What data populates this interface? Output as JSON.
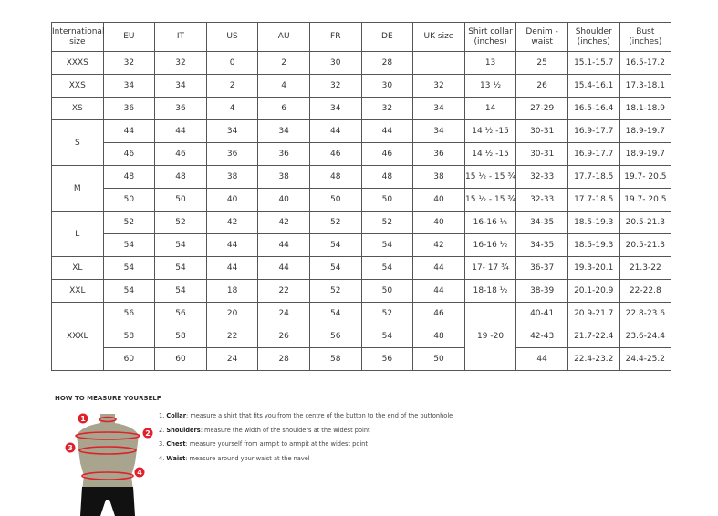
{
  "headers": [
    "International size",
    "EU",
    "IT",
    "US",
    "AU",
    "FR",
    "DE",
    "UK size",
    "Shirt collar (inches)",
    "Denim - waist",
    "Shoulder (inches)",
    "Bust (inches)"
  ],
  "groups": [
    {
      "size": "XXXS",
      "rows": [
        [
          "32",
          "32",
          "0",
          "2",
          "30",
          "28",
          "",
          "13",
          "25",
          "15.1-15.7",
          "16.5-17.2"
        ]
      ]
    },
    {
      "size": "XXS",
      "rows": [
        [
          "34",
          "34",
          "2",
          "4",
          "32",
          "30",
          "32",
          "13 ½",
          "26",
          "15.4-16.1",
          "17.3-18.1"
        ]
      ]
    },
    {
      "size": "XS",
      "rows": [
        [
          "36",
          "36",
          "4",
          "6",
          "34",
          "32",
          "34",
          "14",
          "27-29",
          "16.5-16.4",
          "18.1-18.9"
        ]
      ]
    },
    {
      "size": "S",
      "rows": [
        [
          "44",
          "44",
          "34",
          "34",
          "44",
          "44",
          "34",
          "14 ½ -15",
          "30-31",
          "16.9-17.7",
          "18.9-19.7"
        ],
        [
          "46",
          "46",
          "36",
          "36",
          "46",
          "46",
          "36",
          "14 ½ -15",
          "30-31",
          "16.9-17.7",
          "18.9-19.7"
        ]
      ]
    },
    {
      "size": "M",
      "rows": [
        [
          "48",
          "48",
          "38",
          "38",
          "48",
          "48",
          "38",
          "15 ½ - 15 ¾",
          "32-33",
          "17.7-18.5",
          "19.7- 20.5"
        ],
        [
          "50",
          "50",
          "40",
          "40",
          "50",
          "50",
          "40",
          "15 ½ - 15 ¾",
          "32-33",
          "17.7-18.5",
          "19.7- 20.5"
        ]
      ]
    },
    {
      "size": "L",
      "rows": [
        [
          "52",
          "52",
          "42",
          "42",
          "52",
          "52",
          "40",
          "16-16 ½",
          "34-35",
          "18.5-19.3",
          "20.5-21.3"
        ],
        [
          "54",
          "54",
          "44",
          "44",
          "54",
          "54",
          "42",
          "16-16 ½",
          "34-35",
          "18.5-19.3",
          "20.5-21.3"
        ]
      ]
    },
    {
      "size": "XL",
      "rows": [
        [
          "54",
          "54",
          "44",
          "44",
          "54",
          "54",
          "44",
          "17- 17 ¾",
          "36-37",
          "19.3-20.1",
          "21.3-22"
        ]
      ]
    },
    {
      "size": "XXL",
      "rows": [
        [
          "54",
          "54",
          "18",
          "22",
          "52",
          "50",
          "44",
          "18-18 ½",
          "38-39",
          "20.1-20.9",
          "22-22.8"
        ]
      ]
    },
    {
      "size": "XXXL",
      "collar_merged": "19 -20",
      "rows": [
        [
          "56",
          "56",
          "20",
          "24",
          "54",
          "52",
          "46",
          null,
          "40-41",
          "20.9-21.7",
          "22.8-23.6"
        ],
        [
          "58",
          "58",
          "22",
          "26",
          "56",
          "54",
          "48",
          null,
          "42-43",
          "21.7-22.4",
          "23.6-24.4"
        ],
        [
          "60",
          "60",
          "24",
          "28",
          "58",
          "56",
          "50",
          null,
          "44",
          "22.4-23.2",
          "24.4-25.2"
        ]
      ]
    }
  ],
  "howto": {
    "title": "HOW TO MEASURE YOURSELF",
    "markers": [
      "1",
      "2",
      "3",
      "4"
    ],
    "steps": [
      {
        "num": "1.",
        "term": "Collar",
        "text": ": measure a shirt that fits you from the centre of the button to the end of the buttonhole"
      },
      {
        "num": "2.",
        "term": "Shoulders",
        "text": ": measure the width of the shoulders at the widest point"
      },
      {
        "num": "3.",
        "term": "Chest",
        "text": ": measure yourself from armpit to armpit at the widest point"
      },
      {
        "num": "4.",
        "term": "Waist",
        "text": ": measure around your waist at the navel"
      }
    ],
    "accent": "#e0202a"
  }
}
